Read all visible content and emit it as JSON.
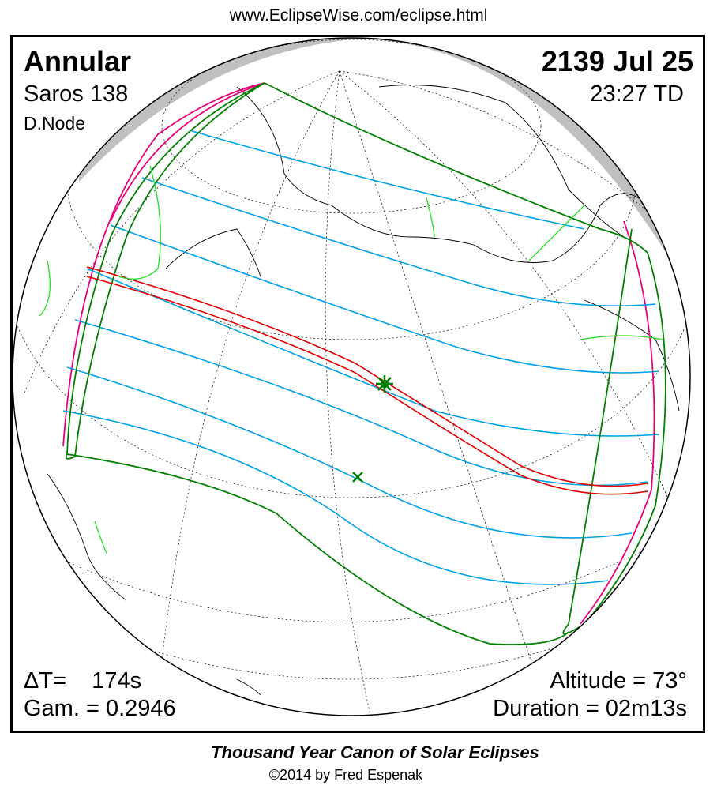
{
  "header": {
    "url": "www.EclipseWise.com/eclipse.html"
  },
  "eclipse": {
    "type": "Annular",
    "date": "2139 Jul 25",
    "saros": "Saros 138",
    "time": "23:27 TD",
    "node": "D.Node",
    "delta_t": "ΔT=    174s",
    "gamma": "Gam. = 0.2946",
    "altitude": "Altitude = 73°",
    "duration": "Duration = 02m13s"
  },
  "footer": {
    "title": "Thousand Year Canon of Solar Eclipses",
    "copyright": "©2014 by Fred Espenak"
  },
  "colors": {
    "central_path": "#e00000",
    "penumbra_limits": "#008000",
    "hourly_curves": "#00a0e8",
    "rise_set_curves": "#e8007a",
    "night_shade": "#c0c0c0",
    "borders": "#30e030"
  },
  "markers": [
    "greatest-eclipse-star",
    "sub-solar-point-x"
  ]
}
